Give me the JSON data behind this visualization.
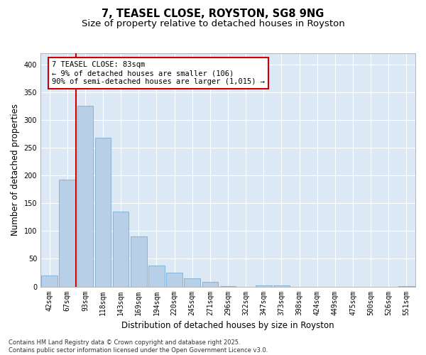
{
  "title": "7, TEASEL CLOSE, ROYSTON, SG8 9NG",
  "subtitle": "Size of property relative to detached houses in Royston",
  "xlabel": "Distribution of detached houses by size in Royston",
  "ylabel": "Number of detached properties",
  "categories": [
    "42sqm",
    "67sqm",
    "93sqm",
    "118sqm",
    "143sqm",
    "169sqm",
    "194sqm",
    "220sqm",
    "245sqm",
    "271sqm",
    "296sqm",
    "322sqm",
    "347sqm",
    "373sqm",
    "398sqm",
    "424sqm",
    "449sqm",
    "475sqm",
    "500sqm",
    "526sqm",
    "551sqm"
  ],
  "values": [
    20,
    193,
    325,
    268,
    135,
    90,
    38,
    25,
    15,
    8,
    1,
    0,
    2,
    2,
    0,
    0,
    0,
    0,
    0,
    0,
    1
  ],
  "bar_color": "#b8cfe8",
  "bar_edge_color": "#7aaed6",
  "bg_color": "#dce9f5",
  "grid_color": "#ffffff",
  "marker_color": "#cc0000",
  "annotation_text": "7 TEASEL CLOSE: 83sqm\n← 9% of detached houses are smaller (106)\n90% of semi-detached houses are larger (1,015) →",
  "annotation_box_color": "#cc0000",
  "footer": "Contains HM Land Registry data © Crown copyright and database right 2025.\nContains public sector information licensed under the Open Government Licence v3.0.",
  "ylim": [
    0,
    420
  ],
  "yticks": [
    0,
    50,
    100,
    150,
    200,
    250,
    300,
    350,
    400
  ],
  "title_fontsize": 10.5,
  "subtitle_fontsize": 9.5,
  "tick_fontsize": 7,
  "ylabel_fontsize": 8.5,
  "xlabel_fontsize": 8.5,
  "annotation_fontsize": 7.5,
  "footer_fontsize": 6
}
